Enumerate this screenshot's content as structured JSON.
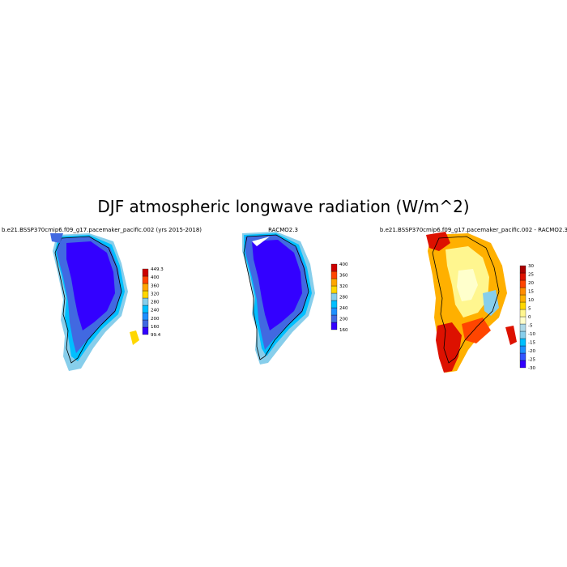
{
  "figure": {
    "title": "DJF atmospheric longwave radiation (W/m^2)"
  },
  "panels": [
    {
      "id": "model",
      "title": "b.e21.BSSP370cmip6.f09_g17.pacemaker_pacific.002 (yrs 2015-2018)",
      "colorbar": {
        "colors": [
          "#3300ff",
          "#4169e1",
          "#1e90ff",
          "#00bfff",
          "#87ceeb",
          "#ffd700",
          "#ffa500",
          "#ff4500",
          "#cc0000"
        ],
        "labels": [
          "99.4",
          "160",
          "200",
          "240",
          "280",
          "320",
          "360",
          "400",
          "449.3"
        ]
      }
    },
    {
      "id": "racmo",
      "title": "RACMO2.3",
      "colorbar": {
        "colors": [
          "#3300ff",
          "#4169e1",
          "#1e90ff",
          "#00bfff",
          "#87ceeb",
          "#ffd700",
          "#ffa500",
          "#ff4500",
          "#cc0000"
        ],
        "labels": [
          "160",
          "200",
          "240",
          "280",
          "320",
          "360",
          "400"
        ]
      }
    },
    {
      "id": "difference",
      "title": "b.e21.BSSP370cmip6.f09_g17.pacemaker_pacific.002 - RACMO2.3",
      "colorbar": {
        "colors": [
          "#3300ff",
          "#3355ff",
          "#1e90ff",
          "#00bfff",
          "#87ceeb",
          "#add8e6",
          "#ffffcc",
          "#fff68f",
          "#ffd700",
          "#ffb000",
          "#ff8c00",
          "#ff4500",
          "#dd1100",
          "#aa0000"
        ],
        "labels": [
          "-30",
          "-25",
          "-20",
          "-15",
          "-10",
          "-5",
          "0",
          "5",
          "10",
          "15",
          "20",
          "25",
          "30"
        ]
      }
    }
  ]
}
